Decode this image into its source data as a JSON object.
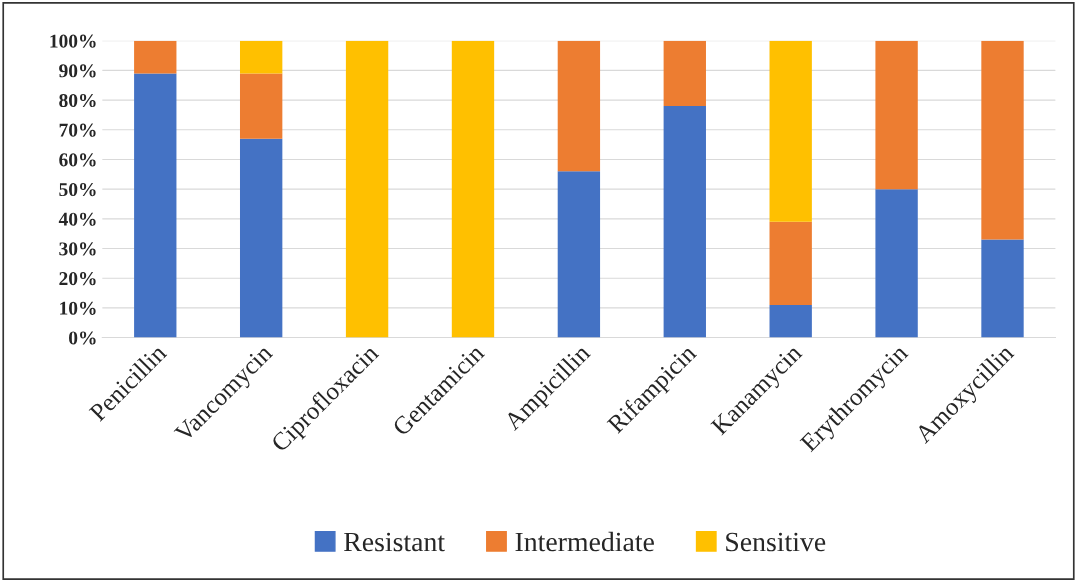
{
  "chart_data": {
    "type": "bar",
    "stacked": true,
    "categories": [
      "Penicillin",
      "Vancomycin",
      "Ciprofloxacin",
      "Gentamicin",
      "Ampicillin",
      "Rifampicin",
      "Kanamycin",
      "Erythromycin",
      "Amoxycillin"
    ],
    "series": [
      {
        "name": "Resistant",
        "color": "#4472c4",
        "values": [
          89,
          67,
          0,
          0,
          56,
          78,
          11,
          50,
          33
        ]
      },
      {
        "name": "Intermediate",
        "color": "#ed7d31",
        "values": [
          11,
          22,
          0,
          0,
          44,
          22,
          28,
          50,
          67
        ]
      },
      {
        "name": "Sensitive",
        "color": "#ffc000",
        "values": [
          0,
          11,
          100,
          100,
          0,
          0,
          61,
          0,
          0
        ]
      }
    ],
    "ylim": [
      0,
      100
    ],
    "yticks": [
      {
        "value": 0,
        "label": "0%"
      },
      {
        "value": 10,
        "label": "10%"
      },
      {
        "value": 20,
        "label": "20%"
      },
      {
        "value": 30,
        "label": "30%"
      },
      {
        "value": 40,
        "label": "40%"
      },
      {
        "value": 50,
        "label": "50%"
      },
      {
        "value": 60,
        "label": "60%"
      },
      {
        "value": 70,
        "label": "70%"
      },
      {
        "value": 80,
        "label": "80%"
      },
      {
        "value": 90,
        "label": "90%"
      },
      {
        "value": 100,
        "label": "100%"
      }
    ],
    "grid": "y",
    "legend": "bottom"
  }
}
